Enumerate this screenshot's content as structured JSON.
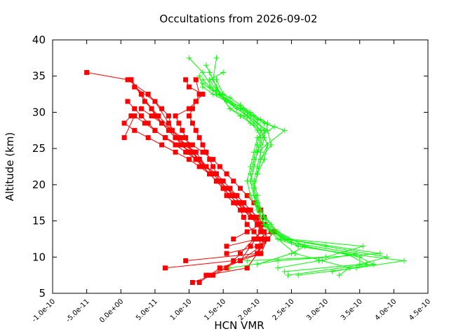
{
  "chart_data": {
    "type": "line",
    "title": "Occultations from 2026-09-02",
    "xlabel": "HCN VMR",
    "ylabel": "Altitude (km)",
    "xlim": [
      -1e-10,
      4.5e-10
    ],
    "ylim": [
      5,
      40
    ],
    "x_ticks": [
      -1e-10,
      -5e-11,
      0,
      5e-11,
      1e-10,
      1.5e-10,
      2e-10,
      2.5e-10,
      3e-10,
      3.5e-10,
      4e-10,
      4.5e-10
    ],
    "x_tick_labels": [
      "-1.0e-10",
      "-5.0e-11",
      "0.0e+00",
      "5.0e-11",
      "1.0e-10",
      "1.5e-10",
      "2.0e-10",
      "2.5e-10",
      "3.0e-10",
      "3.5e-10",
      "4.0e-10",
      "4.5e-10"
    ],
    "y_ticks": [
      5,
      10,
      15,
      20,
      25,
      30,
      35,
      40
    ],
    "y_tick_labels": [
      "5",
      "10",
      "15",
      "20",
      "25",
      "30",
      "35",
      "40"
    ],
    "grid": false,
    "colors": {
      "red_series": "#ff0000",
      "green_series": "#00ff00"
    },
    "series": [
      {
        "marker": "square",
        "color": "#ff0000",
        "x": [
          1.05e-10,
          1.35e-10,
          1.55e-10,
          1.75e-10,
          1.95e-10,
          2.05e-10,
          2e-10,
          1.9e-10,
          1.8e-10,
          1.7e-10,
          1.55e-10,
          1.45e-10,
          1.35e-10,
          1.25e-10,
          1.15e-10,
          1.05e-10,
          9.5e-11,
          8.5e-11,
          7.5e-11,
          7e-11,
          6e-11,
          4e-11,
          1e-11,
          -5e-11
        ],
        "y": [
          6.5,
          7.5,
          8.5,
          10.5,
          12.5,
          13.5,
          15.5,
          16.5,
          17.5,
          18.5,
          19.5,
          20.5,
          21.5,
          22.5,
          23.5,
          24.5,
          25.5,
          26.5,
          27.5,
          29.5,
          30.5,
          32.5,
          34.5,
          35.5
        ]
      },
      {
        "marker": "square",
        "color": "#ff0000",
        "x": [
          1.15e-10,
          1.45e-10,
          1.75e-10,
          2.05e-10,
          2.15e-10,
          2.1e-10,
          2e-10,
          1.95e-10,
          1.85e-10,
          1.75e-10,
          1.65e-10,
          1.55e-10,
          1.45e-10,
          1.35e-10,
          1.25e-10,
          1.15e-10,
          1.05e-10,
          9.5e-11,
          8e-11,
          6e-11,
          4.5e-11,
          3e-11,
          1.5e-11
        ],
        "y": [
          6.5,
          8.5,
          9.5,
          10.5,
          12.5,
          13.5,
          14.5,
          15.5,
          16.5,
          17.5,
          18.5,
          19.5,
          20.5,
          21.5,
          22.5,
          23.5,
          24.5,
          25.5,
          26.5,
          28.5,
          30.5,
          32.5,
          34.5
        ]
      },
      {
        "marker": "square",
        "color": "#ff0000",
        "x": [
          1.25e-10,
          1.85e-10,
          2e-10,
          2.1e-10,
          2.05e-10,
          1.95e-10,
          1.85e-10,
          1.7e-10,
          1.6e-10,
          1.5e-10,
          1.4e-10,
          1.3e-10,
          1.2e-10,
          1.1e-10,
          1e-10,
          9e-11,
          8e-11,
          7e-11,
          5e-11,
          2e-11
        ],
        "y": [
          7.5,
          8.5,
          10.5,
          12.5,
          14.5,
          15.5,
          16.5,
          17.5,
          18.5,
          19.5,
          20.5,
          21.5,
          22.5,
          23.5,
          24.5,
          25.5,
          26.5,
          28.5,
          31.5,
          33.5
        ]
      },
      {
        "marker": "square",
        "color": "#ff0000",
        "x": [
          1.3e-10,
          1.75e-10,
          2.05e-10,
          2.15e-10,
          2.25e-10,
          2.1e-10,
          1.95e-10,
          1.85e-10,
          1.75e-10,
          1.65e-10,
          1.55e-10,
          1.45e-10,
          1.35e-10,
          1.25e-10,
          1.1e-10,
          9.5e-11,
          7.5e-11,
          5.5e-11,
          3.5e-11,
          1.5e-11
        ],
        "y": [
          7.5,
          9.5,
          11.5,
          12.5,
          13.5,
          14.5,
          15.5,
          16.5,
          17.5,
          18.5,
          19.5,
          20.5,
          21.5,
          22.5,
          24.5,
          25.5,
          27.5,
          29.5,
          31.5,
          34.5
        ]
      },
      {
        "marker": "square",
        "color": "#ff0000",
        "x": [
          6.5e-11,
          1.65e-10,
          2.05e-10,
          2.15e-10,
          2.05e-10,
          1.95e-10,
          1.8e-10,
          1.7e-10,
          1.6e-10,
          1.5e-10,
          1.4e-10,
          1.3e-10,
          1.2e-10,
          1.05e-10,
          8.5e-11,
          6.5e-11,
          5e-11,
          4e-11,
          3e-11,
          2e-11,
          1e-11
        ],
        "y": [
          8.5,
          9.5,
          10.5,
          12.5,
          14.5,
          15.5,
          16.5,
          17.5,
          18.5,
          19.5,
          20.5,
          21.5,
          22.5,
          24.5,
          25.5,
          26.5,
          27.5,
          28.5,
          29.5,
          30.5,
          31.5
        ]
      },
      {
        "marker": "square",
        "color": "#ff0000",
        "x": [
          9.5e-11,
          2e-10,
          2.15e-10,
          2.1e-10,
          2.05e-10,
          1.9e-10,
          1.8e-10,
          1.7e-10,
          1.6e-10,
          1.5e-10,
          1.4e-10,
          1.3e-10,
          1.15e-10,
          1e-10,
          8e-11,
          6e-11,
          4e-11,
          2e-11,
          5e-12,
          1.5e-11
        ],
        "y": [
          9.5,
          10.5,
          12.5,
          13.5,
          14.5,
          15.5,
          16.5,
          17.5,
          18.5,
          19.5,
          20.5,
          21.5,
          22.5,
          23.5,
          24.5,
          25.5,
          26.5,
          27.5,
          28.5,
          29.5
        ]
      },
      {
        "marker": "square",
        "color": "#ff0000",
        "x": [
          1.55e-10,
          2e-10,
          2.2e-10,
          2.1e-10,
          2e-10,
          1.9e-10,
          1.8e-10,
          1.7e-10,
          1.6e-10,
          1.5e-10,
          1.4e-10,
          1.25e-10,
          1.1e-10,
          9.5e-11,
          8e-11,
          6.5e-11,
          5e-11,
          3.5e-11,
          2e-11,
          5e-12
        ],
        "y": [
          11.5,
          12.5,
          13.5,
          14.5,
          15.5,
          16.5,
          17.5,
          18.5,
          19.5,
          20.5,
          21.5,
          22.5,
          23.5,
          24.5,
          25.5,
          26.5,
          27.5,
          28.5,
          29.5,
          26.5
        ]
      },
      {
        "marker": "square",
        "color": "#ff0000",
        "x": [
          1.65e-10,
          1.85e-10,
          2.05e-10,
          2.1e-10,
          2.05e-10,
          1.95e-10,
          1.85e-10,
          1.75e-10,
          1.65e-10,
          1.55e-10,
          1.45e-10,
          1.35e-10,
          1.2e-10,
          1.05e-10,
          9e-11,
          7.5e-11,
          6e-11,
          4.5e-11,
          3e-11
        ],
        "y": [
          12.5,
          13.5,
          14.5,
          15.5,
          16.5,
          17.5,
          18.5,
          19.5,
          20.5,
          21.5,
          22.5,
          23.5,
          24.5,
          25.5,
          26.5,
          27.5,
          28.5,
          29.5,
          30.5
        ]
      },
      {
        "marker": "square",
        "color": "#ff0000",
        "x": [
          1.55e-10,
          2e-10,
          2.15e-10,
          2.1e-10,
          2e-10,
          1.9e-10,
          1.8e-10,
          1.7e-10,
          1.6e-10,
          1.5e-10,
          1.4e-10,
          1.3e-10,
          1.2e-10,
          1.1e-10,
          1e-10,
          9e-11,
          8e-11,
          7e-11,
          6e-11,
          5e-11,
          4.5e-11
        ],
        "y": [
          10.5,
          11.5,
          12.5,
          13.5,
          14.5,
          15.5,
          16.5,
          17.5,
          18.5,
          19.5,
          20.5,
          21.5,
          22.5,
          23.5,
          24.5,
          25.5,
          26.5,
          27.5,
          28.5,
          29.5,
          30.5
        ]
      },
      {
        "marker": "square",
        "color": "#ff0000",
        "x": [
          1.75e-10,
          1.9e-10,
          2.05e-10,
          2e-10,
          1.95e-10,
          1.85e-10,
          1.75e-10,
          1.65e-10,
          1.55e-10,
          1.45e-10,
          1.35e-10,
          1.25e-10,
          1.15e-10,
          1.05e-10,
          1e-10,
          9.5e-11,
          9e-11,
          8.5e-11,
          8e-11,
          1e-10,
          1.1e-10,
          1.2e-10,
          1e-10,
          9.5e-11
        ],
        "y": [
          9.5,
          11.5,
          13.5,
          14.5,
          15.5,
          16.5,
          17.5,
          18.5,
          19.5,
          20.5,
          21.5,
          22.5,
          23.5,
          24.5,
          25.5,
          26.5,
          27.5,
          28.5,
          29.5,
          30.5,
          31.5,
          32.5,
          33.5,
          34.5
        ]
      },
      {
        "marker": "square",
        "color": "#ff0000",
        "x": [
          1.85e-10,
          2e-10,
          2.05e-10,
          1.95e-10,
          1.85e-10,
          1.8e-10,
          1.75e-10,
          1.65e-10,
          1.55e-10,
          1.5e-10,
          1.45e-10,
          1.4e-10,
          1.35e-10,
          1.3e-10,
          1.25e-10,
          1.2e-10,
          1.15e-10,
          1.1e-10,
          1.05e-10,
          1e-10,
          1.05e-10,
          1.1e-10,
          1.15e-10,
          1.1e-10
        ],
        "y": [
          8.5,
          10.5,
          12.5,
          13.5,
          14.5,
          15.5,
          16.5,
          17.5,
          18.5,
          19.5,
          20.5,
          21.5,
          22.5,
          23.5,
          24.5,
          25.5,
          26.5,
          27.5,
          28.5,
          29.5,
          30.5,
          31.5,
          32.5,
          34.5
        ]
      },
      {
        "marker": "plus",
        "color": "#00ff00",
        "x": [
          1.6e-10,
          2.3e-10,
          3.8e-10,
          2.4e-10,
          2.1e-10,
          2e-10,
          1.95e-10,
          1.9e-10,
          1.95e-10,
          2e-10,
          2.05e-10,
          2.1e-10,
          2e-10,
          1.9e-10,
          1.8e-10,
          1.6e-10,
          1.4e-10,
          1.2e-10,
          1e-10
        ],
        "y": [
          8.5,
          9.5,
          10.5,
          12.5,
          14.5,
          16.5,
          18.5,
          20.5,
          22.5,
          24.5,
          25.5,
          27.5,
          28.5,
          29.5,
          30.5,
          31.5,
          32.5,
          35.5,
          37.5
        ]
      },
      {
        "marker": "plus",
        "color": "#00ff00",
        "x": [
          2.4e-10,
          3.5e-10,
          3.9e-10,
          3e-10,
          2.4e-10,
          2.15e-10,
          2.05e-10,
          1.95e-10,
          1.9e-10,
          1.95e-10,
          2e-10,
          2.05e-10,
          2e-10,
          1.9e-10,
          1.8e-10,
          1.6e-10,
          1.45e-10,
          1.35e-10,
          1.25e-10
        ],
        "y": [
          8.0,
          9.0,
          10.0,
          11.5,
          12.5,
          14.5,
          16.5,
          18.5,
          20.5,
          22.5,
          24.5,
          26.5,
          27.5,
          28.5,
          29.5,
          30.5,
          32.5,
          34.5,
          36.5
        ]
      },
      {
        "marker": "plus",
        "color": "#00ff00",
        "x": [
          2.6e-10,
          3.45e-10,
          4.15e-10,
          3.3e-10,
          2.6e-10,
          2.3e-10,
          2.1e-10,
          2e-10,
          1.95e-10,
          2e-10,
          2.1e-10,
          2.15e-10,
          2.05e-10,
          1.9e-10,
          1.75e-10,
          1.6e-10,
          1.45e-10,
          1.35e-10,
          1.4e-10
        ],
        "y": [
          7.5,
          8.5,
          9.5,
          10.5,
          11.5,
          13.5,
          15.5,
          17.5,
          19.5,
          21.5,
          23.5,
          25.5,
          27.5,
          28.5,
          29.5,
          30.5,
          32.5,
          34.5,
          37.5
        ]
      },
      {
        "marker": "plus",
        "color": "#00ff00",
        "x": [
          3.1e-10,
          3.7e-10,
          3.5e-10,
          2.7e-10,
          2.3e-10,
          2.1e-10,
          2e-10,
          1.95e-10,
          2e-10,
          2.05e-10,
          2.2e-10,
          2.15e-10,
          2e-10,
          1.85e-10,
          1.7e-10,
          1.55e-10,
          1.4e-10,
          1.3e-10
        ],
        "y": [
          8.0,
          9.0,
          10.0,
          11.5,
          13.5,
          15.5,
          17.5,
          19.5,
          21.5,
          23.5,
          25.5,
          27.5,
          28.5,
          29.5,
          30.5,
          31.5,
          33.5,
          35.5
        ]
      },
      {
        "marker": "plus",
        "color": "#00ff00",
        "x": [
          3.2e-10,
          3.35e-10,
          2.95e-10,
          2.55e-10,
          2.3e-10,
          2.1e-10,
          2e-10,
          1.95e-10,
          1.9e-10,
          1.95e-10,
          2e-10,
          2.4e-10,
          2.1e-10,
          1.95e-10,
          1.8e-10,
          1.6e-10,
          1.45e-10,
          1.3e-10,
          1.2e-10
        ],
        "y": [
          7.5,
          8.5,
          9.5,
          10.5,
          12.5,
          14.5,
          16.5,
          18.5,
          20.5,
          22.5,
          24.5,
          27.5,
          28.5,
          29.5,
          30.5,
          31.5,
          32.5,
          33.5,
          34.5
        ]
      },
      {
        "marker": "plus",
        "color": "#00ff00",
        "x": [
          2.45e-10,
          3.6e-10,
          3.3e-10,
          2.6e-10,
          2.3e-10,
          2.1e-10,
          2e-10,
          1.9e-10,
          1.85e-10,
          1.9e-10,
          1.95e-10,
          2e-10,
          2.25e-10,
          2e-10,
          1.85e-10,
          1.65e-10,
          1.5e-10,
          1.4e-10
        ],
        "y": [
          7.5,
          9.0,
          10.5,
          11.5,
          12.5,
          14.5,
          16.5,
          18.5,
          20.5,
          22.5,
          24.5,
          26.5,
          28.0,
          29.0,
          30.0,
          31.0,
          32.5,
          34.5
        ]
      },
      {
        "marker": "plus",
        "color": "#00ff00",
        "x": [
          1.85e-10,
          3e-10,
          3.55e-10,
          2.45e-10,
          2.15e-10,
          2.05e-10,
          2e-10,
          1.95e-10,
          1.9e-10,
          1.95e-10,
          2e-10,
          2.05e-10,
          1.95e-10,
          1.85e-10,
          1.75e-10,
          1.55e-10,
          1.35e-10,
          1.2e-10,
          1.15e-10
        ],
        "y": [
          9.5,
          10.0,
          11.5,
          12.5,
          14.0,
          15.5,
          17.5,
          19.5,
          21.5,
          23.5,
          25.5,
          27.5,
          28.5,
          29.5,
          30.5,
          31.5,
          32.5,
          33.5,
          35.0
        ]
      },
      {
        "marker": "plus",
        "color": "#00ff00",
        "x": [
          2.3e-10,
          2.9e-10,
          3.45e-10,
          2.5e-10,
          2.2e-10,
          2.1e-10,
          2e-10,
          1.95e-10,
          2e-10,
          2.05e-10,
          2.15e-10,
          2.05e-10,
          1.95e-10,
          1.85e-10,
          1.7e-10,
          1.55e-10,
          1.35e-10,
          1.2e-10
        ],
        "y": [
          8.5,
          9.5,
          10.5,
          12.0,
          13.5,
          15.5,
          17.5,
          19.5,
          21.5,
          23.5,
          25.5,
          27.5,
          28.5,
          29.5,
          30.5,
          31.5,
          33.0,
          34.0
        ]
      },
      {
        "marker": "plus",
        "color": "#00ff00",
        "x": [
          2e-10,
          2.5e-10,
          2.7e-10,
          2.35e-10,
          2.2e-10,
          2.05e-10,
          2e-10,
          1.95e-10,
          2e-10,
          2.05e-10,
          2.1e-10,
          2.15e-10,
          2.05e-10,
          1.9e-10,
          1.75e-10,
          1.6e-10,
          1.4e-10,
          1.3e-10,
          1.5e-10
        ],
        "y": [
          9.0,
          10.5,
          11.5,
          12.5,
          14.5,
          16.5,
          18.5,
          20.5,
          22.5,
          24.5,
          26.5,
          28.5,
          29.0,
          30.0,
          31.0,
          32.0,
          33.0,
          34.5,
          35.5
        ]
      }
    ]
  }
}
